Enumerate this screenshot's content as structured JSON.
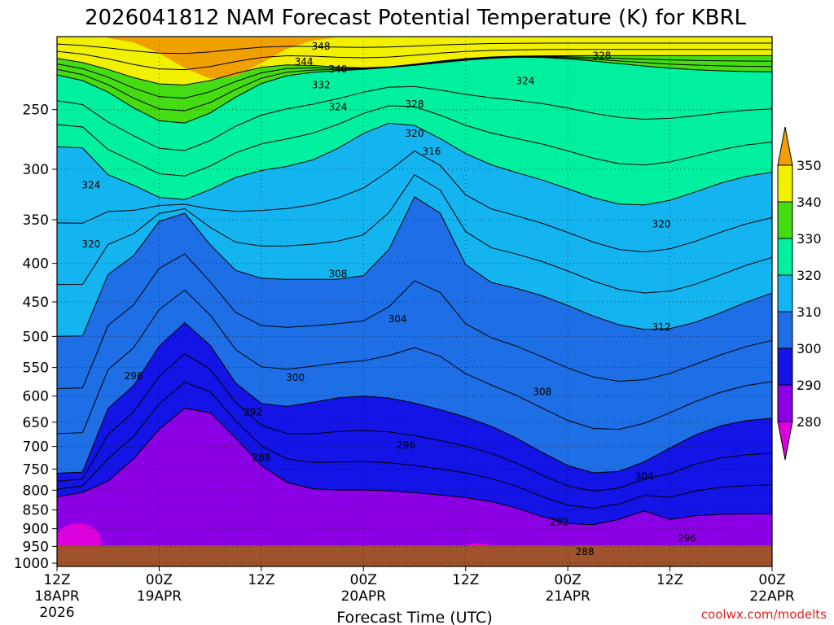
{
  "chart_data": {
    "type": "contour",
    "title": "2026041812 NAM Forecast Potential Temperature (K) for KBRL",
    "xlabel": "Forecast Time (UTC)",
    "ylabel": "",
    "x_ticks": [
      {
        "hour": 0,
        "line1": "12Z",
        "line2": "18APR",
        "line3": "2026"
      },
      {
        "hour": 12,
        "line1": "00Z",
        "line2": "19APR",
        "line3": ""
      },
      {
        "hour": 24,
        "line1": "12Z",
        "line2": "",
        "line3": ""
      },
      {
        "hour": 36,
        "line1": "00Z",
        "line2": "20APR",
        "line3": ""
      },
      {
        "hour": 48,
        "line1": "12Z",
        "line2": "",
        "line3": ""
      },
      {
        "hour": 60,
        "line1": "00Z",
        "line2": "21APR",
        "line3": ""
      },
      {
        "hour": 72,
        "line1": "12Z",
        "line2": "",
        "line3": ""
      },
      {
        "hour": 84,
        "line1": "00Z",
        "line2": "22APR",
        "line3": ""
      }
    ],
    "xlim": [
      0,
      84
    ],
    "y_ticks": [
      250,
      300,
      350,
      400,
      450,
      500,
      550,
      600,
      650,
      700,
      750,
      800,
      850,
      900,
      950,
      1000
    ],
    "ylim_hpa": [
      200,
      1010
    ],
    "contour_interval_K": 4,
    "colorbar": {
      "ticks": [
        "280",
        "290",
        "300",
        "310",
        "320",
        "330",
        "340",
        "350"
      ],
      "colors": [
        "#dc00dc",
        "#8c00e6",
        "#1414e6",
        "#1e6ee6",
        "#14b4f0",
        "#00f0a0",
        "#46dc14",
        "#f0f000",
        "#f0a000"
      ]
    },
    "contour_labels": [
      {
        "value": "348",
        "hour": 31,
        "p": 206
      },
      {
        "value": "344",
        "hour": 29,
        "p": 216
      },
      {
        "value": "340",
        "hour": 33,
        "p": 221
      },
      {
        "value": "332",
        "hour": 31,
        "p": 232
      },
      {
        "value": "328",
        "hour": 42,
        "p": 246
      },
      {
        "value": "328",
        "hour": 64,
        "p": 212
      },
      {
        "value": "324",
        "hour": 33,
        "p": 248
      },
      {
        "value": "324",
        "hour": 55,
        "p": 229
      },
      {
        "value": "324",
        "hour": 4,
        "p": 315
      },
      {
        "value": "320",
        "hour": 42,
        "p": 269
      },
      {
        "value": "320",
        "hour": 4,
        "p": 377
      },
      {
        "value": "320",
        "hour": 71,
        "p": 355
      },
      {
        "value": "316",
        "hour": 44,
        "p": 284
      },
      {
        "value": "312",
        "hour": 71,
        "p": 486
      },
      {
        "value": "308",
        "hour": 33,
        "p": 413
      },
      {
        "value": "308",
        "hour": 57,
        "p": 592
      },
      {
        "value": "304",
        "hour": 40,
        "p": 474
      },
      {
        "value": "304",
        "hour": 69,
        "p": 767
      },
      {
        "value": "300",
        "hour": 28,
        "p": 567
      },
      {
        "value": "296",
        "hour": 9,
        "p": 564
      },
      {
        "value": "296",
        "hour": 41,
        "p": 697
      },
      {
        "value": "296",
        "hour": 74,
        "p": 927
      },
      {
        "value": "292",
        "hour": 23,
        "p": 630
      },
      {
        "value": "292",
        "hour": 59,
        "p": 882
      },
      {
        "value": "288",
        "hour": 24,
        "p": 725
      },
      {
        "value": "288",
        "hour": 62,
        "p": 966
      }
    ],
    "notes": "Time-height cross section of NAM forecast potential temperature; isentropes every 4 K, shaded every 10 K from 280 K (magenta) to 350 K (orange). Ground shown in brown below ~1000 hPa."
  },
  "credit": "coolwx.com/modelts"
}
